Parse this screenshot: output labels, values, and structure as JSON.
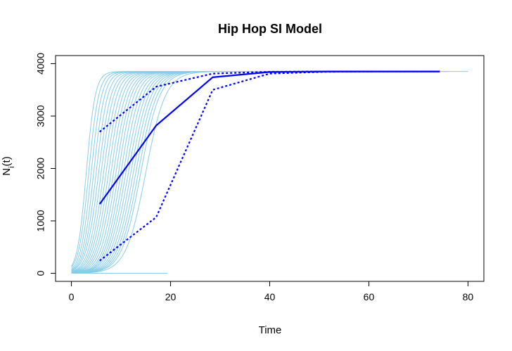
{
  "chart_data": {
    "type": "line",
    "title": "Hip Hop SI Model",
    "xlabel": "Time",
    "ylabel": "N",
    "ylabel_sub": "i",
    "ylabel_suffix": "(t)",
    "xlim": [
      -3.2,
      83.2
    ],
    "ylim": [
      -154,
      4154
    ],
    "x_ticks": [
      0,
      20,
      40,
      60,
      80
    ],
    "y_ticks": [
      0,
      1000,
      2000,
      3000,
      4000
    ],
    "grid": false,
    "legend": "none",
    "simulations": {
      "color": "#87cde8",
      "final_size": 3850,
      "midpoints": [
        3,
        3.5,
        4,
        4.5,
        5,
        5.5,
        6,
        6.5,
        7,
        7.5,
        8,
        8.5,
        9,
        9.5,
        10,
        10.5,
        11,
        11.5,
        12,
        12.5,
        13,
        13.5,
        14,
        15
      ],
      "rates": [
        1.1,
        1.0,
        0.95,
        0.9,
        0.85,
        0.8,
        0.78,
        0.75,
        0.72,
        0.7,
        0.68,
        0.66,
        0.65,
        0.64,
        0.62,
        0.6,
        0.58,
        0.57,
        0.56,
        0.55,
        0.54,
        0.53,
        0.52,
        0.5
      ],
      "t_end": [
        80,
        76,
        74,
        72,
        70,
        68,
        66,
        64,
        62,
        60,
        58,
        56,
        54,
        52,
        50,
        48,
        46,
        44,
        42,
        40,
        38,
        36,
        34,
        32
      ],
      "flat_zero_end": 19.4
    },
    "series": [
      {
        "role": "median",
        "color": "#0000ff",
        "style": "solid",
        "x": [
          5.7,
          17.1,
          28.5,
          40,
          51.5,
          63,
          74.3
        ],
        "y": [
          1320,
          2820,
          3740,
          3840,
          3850,
          3850,
          3850
        ]
      },
      {
        "role": "upper",
        "color": "#0000ff",
        "style": "dotted",
        "x": [
          5.7,
          17.1,
          28.5,
          40,
          51.5,
          63,
          74.3
        ],
        "y": [
          2700,
          3560,
          3810,
          3845,
          3850,
          3850,
          3850
        ]
      },
      {
        "role": "lower",
        "color": "#0000ff",
        "style": "dotted",
        "x": [
          5.7,
          17.1,
          28.5,
          40,
          51.5,
          63,
          74.3
        ],
        "y": [
          240,
          1070,
          3500,
          3810,
          3845,
          3850,
          3850
        ]
      }
    ]
  }
}
